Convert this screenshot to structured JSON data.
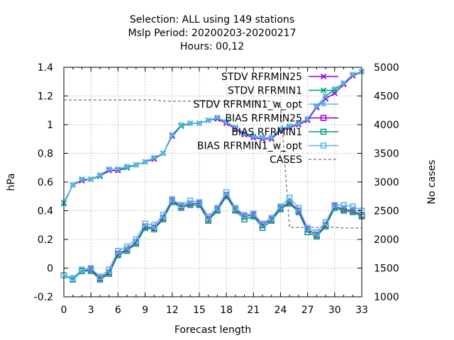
{
  "chart_data": {
    "type": "line",
    "title_lines": [
      "Selection: ALL using   149 stations",
      "Mslp   Period: 20200203-20200217",
      "Hours:  00,12"
    ],
    "xlabel": "Forecast length",
    "ylabel": "hPa",
    "y2label": "No cases",
    "xlim": [
      0,
      33
    ],
    "ylim": [
      -0.2,
      1.4
    ],
    "y2lim": [
      1000,
      5000
    ],
    "x_ticks": [
      0,
      3,
      6,
      9,
      12,
      15,
      18,
      21,
      24,
      27,
      30,
      33
    ],
    "y_ticks": [
      "-0.2",
      "0",
      "0.2",
      "0.4",
      "0.6",
      "0.8",
      "1",
      "1.2",
      "1.4"
    ],
    "y2_ticks": [
      "1000",
      "1500",
      "2000",
      "2500",
      "3000",
      "3500",
      "4000",
      "4500",
      "5000"
    ],
    "grid": true,
    "legend_position": "top-right",
    "x": [
      0,
      1,
      2,
      3,
      4,
      5,
      6,
      7,
      8,
      9,
      10,
      11,
      12,
      13,
      14,
      15,
      16,
      17,
      18,
      19,
      20,
      21,
      22,
      23,
      24,
      25,
      26,
      27,
      28,
      29,
      30,
      31,
      32,
      33
    ],
    "series": [
      {
        "name": "STDV RFRMIN25",
        "color": "#9400d3",
        "marker": "x",
        "axis": "y1",
        "values": [
          0.45,
          0.58,
          0.61,
          0.62,
          0.64,
          0.68,
          0.68,
          0.7,
          0.72,
          0.74,
          0.76,
          0.8,
          0.92,
          0.99,
          1.01,
          1.01,
          1.03,
          1.04,
          1.01,
          0.97,
          0.93,
          0.91,
          0.9,
          0.9,
          0.96,
          0.98,
          1.0,
          1.03,
          1.12,
          1.18,
          1.22,
          1.28,
          1.34,
          1.37
        ]
      },
      {
        "name": "STDV RFRMIN1",
        "color": "#009e73",
        "marker": "x",
        "axis": "y1",
        "values": [
          0.45,
          0.58,
          0.62,
          0.62,
          0.64,
          0.69,
          0.69,
          0.7,
          0.72,
          0.74,
          0.77,
          0.8,
          0.93,
          0.99,
          1.01,
          1.01,
          1.03,
          1.05,
          1.02,
          0.98,
          0.94,
          0.92,
          0.91,
          0.91,
          0.97,
          0.99,
          1.01,
          1.04,
          1.13,
          1.2,
          1.24,
          1.29,
          1.35,
          1.37
        ]
      },
      {
        "name": "STDV RFRMIN1_w_opt",
        "color": "#56b4e9",
        "marker": "star",
        "axis": "y1",
        "values": [
          0.46,
          0.58,
          0.62,
          0.62,
          0.65,
          0.69,
          0.69,
          0.71,
          0.72,
          0.74,
          0.77,
          0.8,
          0.93,
          1.0,
          1.01,
          1.01,
          1.03,
          1.05,
          1.02,
          0.98,
          0.94,
          0.92,
          0.91,
          0.91,
          0.97,
          0.99,
          1.01,
          1.04,
          1.13,
          1.2,
          1.25,
          1.29,
          1.35,
          1.37
        ]
      },
      {
        "name": "BIAS RFRMIN25",
        "color": "#9400d3",
        "marker": "square",
        "axis": "y1",
        "values": [
          -0.05,
          -0.08,
          -0.02,
          -0.01,
          -0.07,
          -0.03,
          0.1,
          0.13,
          0.18,
          0.29,
          0.28,
          0.35,
          0.47,
          0.43,
          0.45,
          0.45,
          0.34,
          0.41,
          0.51,
          0.41,
          0.36,
          0.37,
          0.3,
          0.34,
          0.42,
          0.46,
          0.4,
          0.27,
          0.23,
          0.3,
          0.43,
          0.41,
          0.4,
          0.37
        ]
      },
      {
        "name": "BIAS RFRMIN1",
        "color": "#009e73",
        "marker": "square",
        "axis": "y1",
        "values": [
          -0.05,
          -0.08,
          -0.02,
          -0.02,
          -0.08,
          -0.04,
          0.09,
          0.12,
          0.17,
          0.28,
          0.27,
          0.34,
          0.46,
          0.42,
          0.44,
          0.44,
          0.33,
          0.4,
          0.5,
          0.4,
          0.34,
          0.36,
          0.28,
          0.33,
          0.41,
          0.45,
          0.39,
          0.25,
          0.22,
          0.29,
          0.42,
          0.4,
          0.39,
          0.36
        ]
      },
      {
        "name": "BIAS RFRMIN1_w_opt",
        "color": "#56b4e9",
        "marker": "square",
        "axis": "y1",
        "values": [
          -0.05,
          -0.07,
          -0.01,
          0.0,
          -0.06,
          -0.01,
          0.12,
          0.15,
          0.2,
          0.31,
          0.3,
          0.37,
          0.48,
          0.44,
          0.47,
          0.46,
          0.36,
          0.42,
          0.53,
          0.42,
          0.37,
          0.38,
          0.31,
          0.35,
          0.43,
          0.49,
          0.42,
          0.28,
          0.25,
          0.32,
          0.44,
          0.44,
          0.43,
          0.4
        ]
      },
      {
        "name": "CASES",
        "color": "#888888",
        "marker": "none",
        "dashed": true,
        "axis": "y2",
        "values": [
          4430,
          4430,
          4430,
          4430,
          4430,
          4430,
          4430,
          4430,
          4430,
          4430,
          4430,
          4410,
          4410,
          4410,
          4410,
          4410,
          4410,
          4410,
          4410,
          4410,
          4410,
          4410,
          4410,
          4410,
          4360,
          2210,
          2210,
          2210,
          2210,
          2210,
          2210,
          2200,
          2200,
          2200
        ]
      }
    ]
  }
}
